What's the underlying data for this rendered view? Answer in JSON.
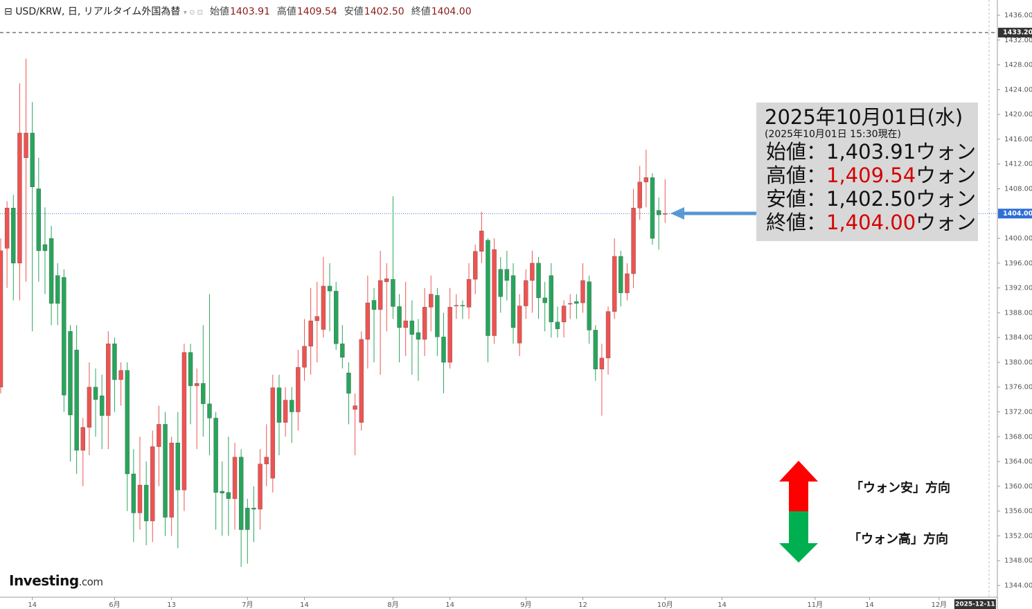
{
  "chart_data": {
    "type": "candlestick",
    "title": "USD/KRW, 日, リアルタイム外国為替",
    "header": [
      {
        "label": "始値",
        "value": "1403.91"
      },
      {
        "label": "高値",
        "value": "1409.54"
      },
      {
        "label": "安値",
        "value": "1402.50"
      },
      {
        "label": "終値",
        "value": "1404.00"
      }
    ],
    "up_color": "#ef5350",
    "down_color": "#26a65b",
    "open": [
      1376,
      1398.4,
      1404.9,
      1396,
      1413,
      1417,
      1408,
      1399,
      1400,
      1394,
      1393.7,
      1385,
      1382,
      1365.8,
      1369.5,
      1376,
      1374.6,
      1371.4,
      1383,
      1377.2,
      1378.7,
      1362,
      1355.7,
      1360.2,
      1354.4,
      1366.4,
      1370,
      1355,
      1367,
      1359.4,
      1381.6,
      1376.2,
      1376.6,
      1373.3,
      1371,
      1359.2,
      1359,
      1358,
      1364.7,
      1356.5,
      1356.5,
      1356.3,
      1363.6,
      1361.3,
      1375.9,
      1370.3,
      1373.9,
      1372,
      1379.2,
      1382.6,
      1386.7,
      1385.3,
      1392.3,
      1391.5,
      1383,
      1378.3,
      1372.4,
      1370.3,
      1383.7,
      1390,
      1388.5,
      1393,
      1393.4,
      1389,
      1385.6,
      1386.7,
      1384.8,
      1383.7,
      1388.9,
      1390.8,
      1384.1,
      1380,
      1389.1,
      1389.2,
      1388.9,
      1393.4,
      1397.9,
      1399.7,
      1384.3,
      1395,
      1395,
      1394,
      1383.1,
      1389.1,
      1393.2,
      1396,
      1390.4,
      1394,
      1386.5,
      1386.5,
      1389.4,
      1389.8,
      1389.6,
      1393,
      1385.2,
      1378.9,
      1380.7,
      1388.2,
      1397.1,
      1391.2,
      1394.3,
      1404.9,
      1409.1,
      1409.8,
      1404.5,
      1403.91
    ],
    "high": [
      1400,
      1406,
      1407,
      1425,
      1429,
      1422,
      1413,
      1405,
      1402,
      1396,
      1395,
      1386,
      1386,
      1371,
      1380,
      1379,
      1378,
      1385,
      1384,
      1380,
      1380,
      1366,
      1368,
      1364,
      1369,
      1373,
      1372,
      1368,
      1372,
      1383,
      1383,
      1379,
      1386,
      1391,
      1372,
      1364,
      1368,
      1367,
      1366,
      1358,
      1360,
      1366,
      1370,
      1378,
      1378,
      1376,
      1376,
      1382,
      1387,
      1392,
      1393,
      1397,
      1396,
      1393,
      1386,
      1380,
      1375,
      1385,
      1394,
      1392,
      1398,
      1396,
      1406.8,
      1391,
      1393,
      1390,
      1387,
      1392,
      1394,
      1392,
      1388,
      1392,
      1391,
      1390,
      1396,
      1399,
      1404.3,
      1400,
      1400,
      1397,
      1398,
      1396,
      1391,
      1395,
      1398,
      1397,
      1393,
      1396,
      1389,
      1390,
      1391,
      1391,
      1396,
      1394,
      1386,
      1383,
      1389,
      1400,
      1398,
      1396,
      1408,
      1411.7,
      1414.3,
      1410.5,
      1406.6,
      1409.54
    ],
    "low": [
      1375,
      1392,
      1390,
      1390,
      1393,
      1385,
      1393,
      1391,
      1386,
      1386,
      1372,
      1364,
      1362,
      1360,
      1365,
      1368,
      1366,
      1366,
      1372,
      1373,
      1356,
      1351,
      1353,
      1350.5,
      1351,
      1360,
      1352,
      1352,
      1350,
      1356,
      1370,
      1366,
      1368,
      1365,
      1353,
      1352,
      1352,
      1353,
      1347,
      1347.5,
      1351,
      1353,
      1360,
      1359,
      1365,
      1368,
      1367,
      1369,
      1377,
      1378,
      1380,
      1384,
      1385,
      1382,
      1379,
      1370,
      1365,
      1369,
      1379,
      1380,
      1378,
      1385,
      1387,
      1380,
      1381,
      1378,
      1377,
      1381,
      1385,
      1381,
      1375,
      1379,
      1387,
      1387,
      1387,
      1391,
      1396,
      1380,
      1383,
      1388,
      1390,
      1383,
      1381,
      1387,
      1388,
      1387,
      1385,
      1384,
      1384,
      1384,
      1387,
      1387,
      1388,
      1383,
      1377,
      1371.4,
      1378,
      1387,
      1389,
      1390,
      1392,
      1403,
      1405,
      1399,
      1398.2,
      1402.5
    ],
    "close": [
      1398,
      1404.9,
      1396,
      1417,
      1417,
      1408.3,
      1398,
      1398,
      1389.5,
      1389.5,
      1374.7,
      1371.5,
      1365.8,
      1369.5,
      1376,
      1374,
      1371.4,
      1383,
      1377.2,
      1378.7,
      1362,
      1355.7,
      1360.2,
      1354.4,
      1366.4,
      1370,
      1355,
      1367,
      1359.4,
      1381.6,
      1376.2,
      1376.6,
      1373.3,
      1371,
      1359,
      1358.9,
      1358,
      1364.7,
      1353,
      1353,
      1356.3,
      1363.6,
      1364.7,
      1375.9,
      1370.3,
      1373.9,
      1372,
      1379.2,
      1382.6,
      1386.7,
      1387.4,
      1392.3,
      1391.5,
      1383,
      1380.8,
      1375,
      1373,
      1383.7,
      1389.6,
      1388.5,
      1393.2,
      1393.5,
      1389,
      1385.6,
      1386.7,
      1384.5,
      1383.7,
      1388.9,
      1391,
      1384.1,
      1380,
      1388.9,
      1389.2,
      1389.1,
      1393.4,
      1397.9,
      1401.2,
      1384.3,
      1398.2,
      1390.6,
      1393.2,
      1385.6,
      1389.1,
      1393.2,
      1396,
      1390.4,
      1389.6,
      1386.5,
      1385.4,
      1389.1,
      1389.5,
      1389.5,
      1393.2,
      1385.2,
      1378.9,
      1380.7,
      1388.2,
      1397.1,
      1391.2,
      1394.3,
      1404.9,
      1409.1,
      1409.8,
      1400,
      1403.8,
      1404
    ],
    "xlim": [
      -0.11,
      156.2
    ],
    "xticks": [
      {
        "value": 5,
        "label": "14"
      },
      {
        "value": 18,
        "label": "6月"
      },
      {
        "value": 27,
        "label": "13"
      },
      {
        "value": 39,
        "label": "7月"
      },
      {
        "value": 48,
        "label": "14"
      },
      {
        "value": 62,
        "label": "8月"
      },
      {
        "value": 71,
        "label": "14"
      },
      {
        "value": 83,
        "label": "9月"
      },
      {
        "value": 92,
        "label": "12"
      },
      {
        "value": 105,
        "label": "10月"
      },
      {
        "value": 114,
        "label": "14"
      },
      {
        "value": 128.7,
        "label": "11月"
      },
      {
        "value": 137.3,
        "label": "14"
      },
      {
        "value": 148.3,
        "label": "12月"
      }
    ],
    "cursor_date": {
      "value": 154,
      "label": "2025-12-11"
    },
    "ylim": [
      1342.1,
      1438.46
    ],
    "yticks": [
      {
        "value": 1344,
        "label": "1344.00"
      },
      {
        "value": 1348,
        "label": "1348.00"
      },
      {
        "value": 1352,
        "label": "1352.00"
      },
      {
        "value": 1356,
        "label": "1356.00"
      },
      {
        "value": 1360,
        "label": "1360.00"
      },
      {
        "value": 1364,
        "label": "1364.00"
      },
      {
        "value": 1368,
        "label": "1368.00"
      },
      {
        "value": 1372,
        "label": "1372.00"
      },
      {
        "value": 1376,
        "label": "1376.00"
      },
      {
        "value": 1380,
        "label": "1380.00"
      },
      {
        "value": 1384,
        "label": "1384.00"
      },
      {
        "value": 1388,
        "label": "1388.00"
      },
      {
        "value": 1392,
        "label": "1392.00"
      },
      {
        "value": 1396,
        "label": "1396.00"
      },
      {
        "value": 1400,
        "label": "1400.00"
      },
      {
        "value": 1404,
        "label": "1404.00"
      },
      {
        "value": 1408,
        "label": "1408.00"
      },
      {
        "value": 1412,
        "label": "1412.00"
      },
      {
        "value": 1416,
        "label": "1416.00"
      },
      {
        "value": 1420,
        "label": "1420.00"
      },
      {
        "value": 1424,
        "label": "1424.00"
      },
      {
        "value": 1428,
        "label": "1428.00"
      },
      {
        "value": 1432,
        "label": "1432.00"
      },
      {
        "value": 1436,
        "label": "1436.00"
      }
    ],
    "price_lines": [
      {
        "value": 1433.2,
        "label": "1433.20",
        "color": "#333333",
        "style": "dashed"
      },
      {
        "value": 1404,
        "label": "1404.00",
        "color": "#2f6fd6",
        "style": "dotted"
      }
    ],
    "annotation": {
      "date": "2025年10月01日(水)",
      "note": "(2025年10月01日 15:30現在)",
      "rows": [
        {
          "label": "始値：",
          "value": "1,403.91",
          "unit": "ウォン",
          "highlight": false
        },
        {
          "label": "高値：",
          "value": "1,409.54",
          "unit": "ウォン",
          "highlight": true
        },
        {
          "label": "安値：",
          "value": "1,402.50",
          "unit": "ウォン",
          "highlight": false
        },
        {
          "label": "終値：",
          "value": "1,404.00",
          "unit": "ウォン",
          "highlight": true
        }
      ]
    },
    "direction": {
      "up": "「ウォン安」方向",
      "down": "「ウォン高」方向"
    },
    "logo": {
      "brand": "Investing",
      "suffix": ".com"
    }
  }
}
